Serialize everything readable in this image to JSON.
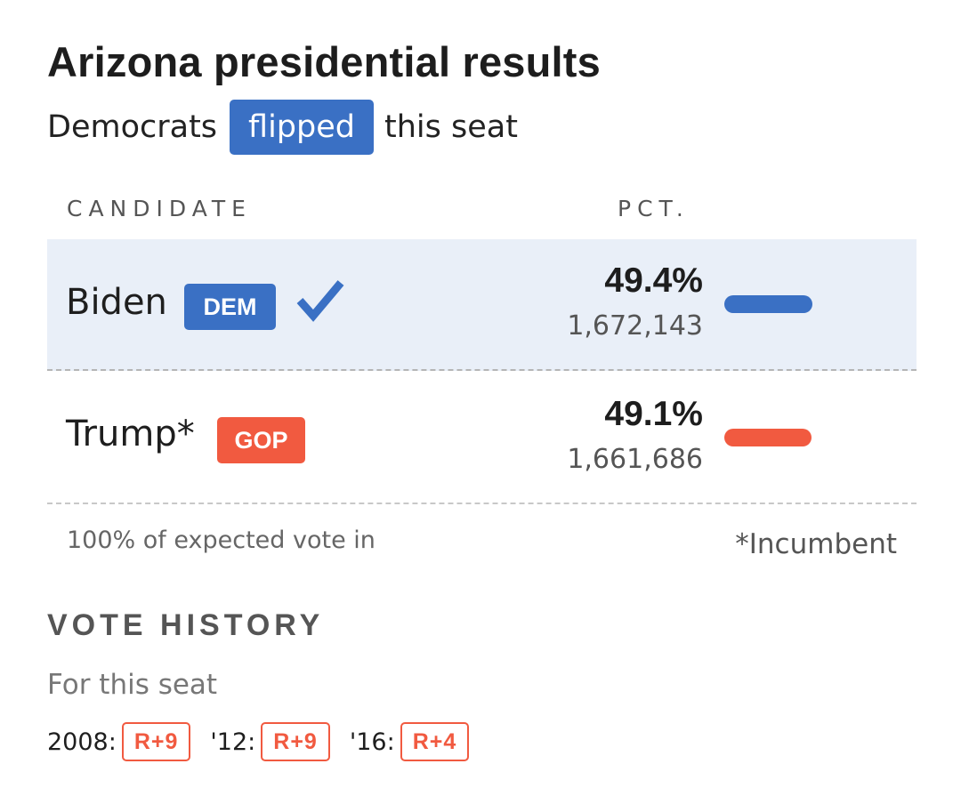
{
  "title": "Arizona presidential results",
  "subtitle": {
    "prefix": "Democrats",
    "badge": "flipped",
    "suffix": "this seat"
  },
  "table": {
    "headers": {
      "candidate": "CANDIDATE",
      "pct": "PCT."
    },
    "rows": [
      {
        "name": "Biden",
        "party": "DEM",
        "pct": "49.4%",
        "votes": "1,672,143",
        "winner": true,
        "bar_fraction": 0.494,
        "color": "#3a70c4"
      },
      {
        "name": "Trump*",
        "party": "GOP",
        "pct": "49.1%",
        "votes": "1,661,686",
        "winner": false,
        "bar_fraction": 0.491,
        "color": "#f15a40"
      }
    ]
  },
  "footnote": {
    "reporting": "100% of expected vote in",
    "incumbent": "*Incumbent"
  },
  "history": {
    "heading": "VOTE HISTORY",
    "subheading": "For this seat",
    "items": [
      {
        "year": "2008:",
        "result": "R+9"
      },
      {
        "year": "'12:",
        "result": "R+9"
      },
      {
        "year": "'16:",
        "result": "R+4"
      }
    ]
  },
  "colors": {
    "dem": "#3a70c4",
    "gop": "#f15a40",
    "winner_row_bg": "#e9eff8"
  },
  "icons": {
    "winner": "checkmark-icon"
  }
}
